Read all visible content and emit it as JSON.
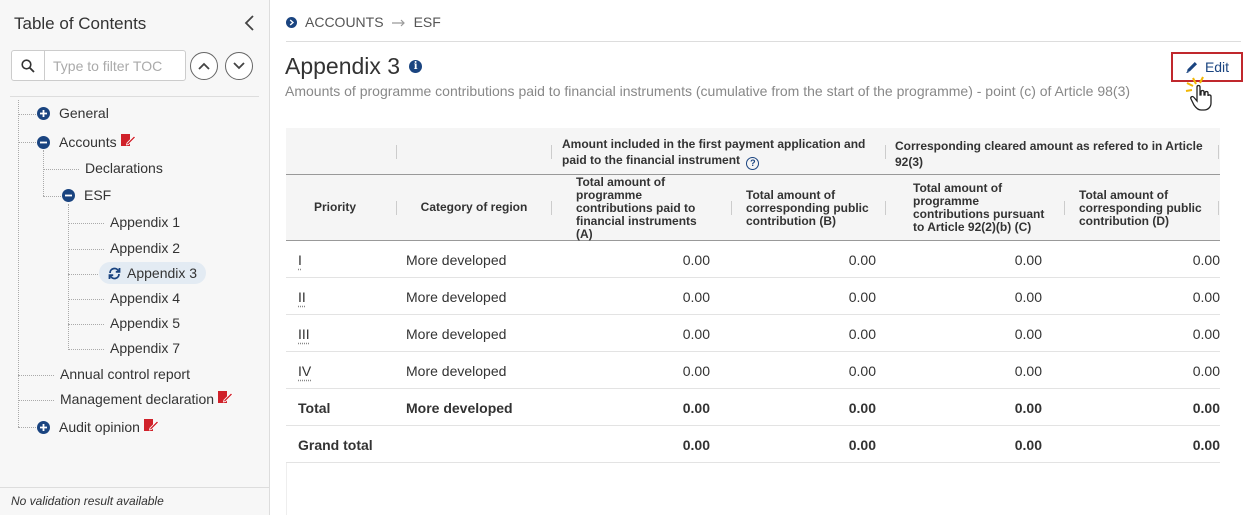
{
  "sidebar": {
    "title": "Table of Contents",
    "filter_placeholder": "Type to filter TOC",
    "footer": "No validation result available",
    "tree": {
      "general": "General",
      "accounts": "Accounts",
      "declarations": "Declarations",
      "esf": "ESF",
      "appendix1": "Appendix 1",
      "appendix2": "Appendix 2",
      "appendix3": "Appendix 3",
      "appendix4": "Appendix 4",
      "appendix5": "Appendix 5",
      "appendix7": "Appendix 7",
      "annual_control_report": "Annual control report",
      "management_declaration": "Management declaration",
      "audit_opinion": "Audit opinion"
    }
  },
  "breadcrumb": {
    "item1": "ACCOUNTS",
    "item2": "ESF"
  },
  "page": {
    "title": "Appendix 3",
    "subtitle": "Amounts of programme contributions paid to financial instruments (cumulative from the start of the programme) - point (c) of Article 98(3)",
    "edit_label": "Edit"
  },
  "table": {
    "group_headers": {
      "g1": "Amount included in the first payment application and paid to the financial instrument",
      "g2": "Corresponding cleared amount as refered to in Article 92(3)"
    },
    "columns": {
      "priority": "Priority",
      "category": "Category of region",
      "a": "Total amount of programme contributions paid to financial instruments (A)",
      "b": "Total amount of corresponding public contribution   (B)",
      "c": "Total amount of programme contributions pursuant to Article 92(2)(b)   (C)",
      "d": "Total amount of corresponding public contribution   (D)"
    },
    "rows": [
      {
        "priority": "I",
        "category": "More developed",
        "a": "0.00",
        "b": "0.00",
        "c": "0.00",
        "d": "0.00"
      },
      {
        "priority": "II",
        "category": "More developed",
        "a": "0.00",
        "b": "0.00",
        "c": "0.00",
        "d": "0.00"
      },
      {
        "priority": "III",
        "category": "More developed",
        "a": "0.00",
        "b": "0.00",
        "c": "0.00",
        "d": "0.00"
      },
      {
        "priority": "IV",
        "category": "More developed",
        "a": "0.00",
        "b": "0.00",
        "c": "0.00",
        "d": "0.00"
      },
      {
        "priority": "Total",
        "category": "More developed",
        "a": "0.00",
        "b": "0.00",
        "c": "0.00",
        "d": "0.00"
      },
      {
        "priority": "Grand total",
        "category": "",
        "a": "0.00",
        "b": "0.00",
        "c": "0.00",
        "d": "0.00"
      }
    ]
  },
  "colors": {
    "accent": "#1a4480",
    "edit_border": "#c0282d",
    "badge_red": "#d0212a"
  }
}
